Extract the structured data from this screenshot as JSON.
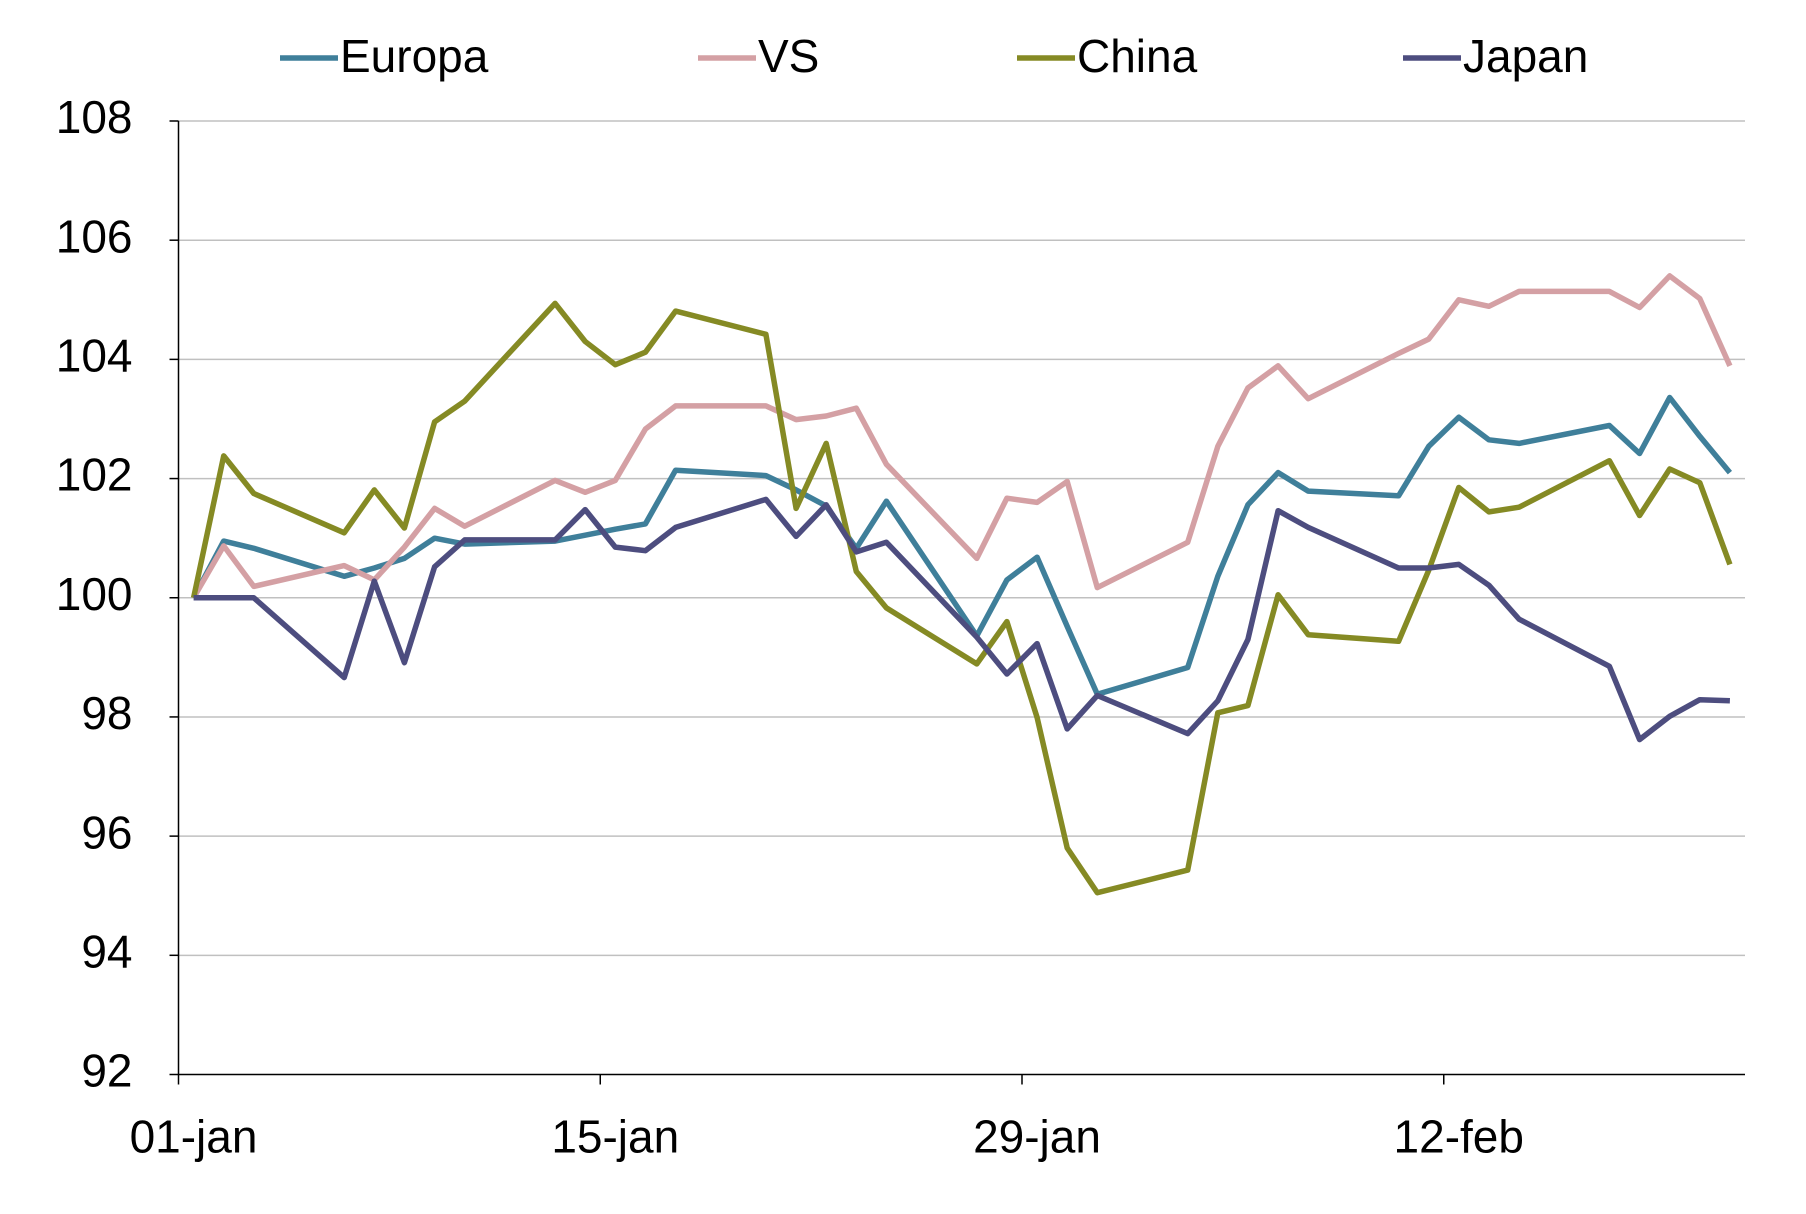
{
  "chart_data": {
    "type": "line",
    "x": [
      "01-jan",
      "02-jan",
      "03-jan",
      "06-jan",
      "07-jan",
      "08-jan",
      "09-jan",
      "10-jan",
      "13-jan",
      "14-jan",
      "15-jan",
      "16-jan",
      "17-jan",
      "20-jan",
      "21-jan",
      "22-jan",
      "23-jan",
      "24-jan",
      "27-jan",
      "28-jan",
      "29-jan",
      "30-jan",
      "31-jan",
      "03-feb",
      "04-feb",
      "05-feb",
      "06-feb",
      "07-feb",
      "10-feb",
      "11-feb",
      "12-feb",
      "13-feb",
      "14-feb",
      "17-feb",
      "18-feb",
      "19-feb",
      "20-feb",
      "21-feb"
    ],
    "series": [
      {
        "name": "Europa",
        "color": "#3f7f9a",
        "values": [
          100.0,
          100.95,
          100.83,
          100.36,
          100.5,
          100.66,
          101.0,
          100.9,
          100.95,
          101.05,
          101.15,
          101.24,
          102.14,
          102.05,
          101.81,
          101.54,
          100.83,
          101.62,
          99.36,
          100.3,
          100.68,
          99.52,
          98.38,
          98.83,
          100.36,
          101.56,
          102.1,
          101.79,
          101.71,
          102.54,
          103.03,
          102.65,
          102.59,
          102.89,
          102.42,
          103.36,
          102.71,
          102.1
        ]
      },
      {
        "name": "VS",
        "color": "#d4a0a4",
        "values": [
          100.0,
          100.87,
          100.19,
          100.54,
          100.3,
          100.85,
          101.5,
          101.2,
          101.97,
          101.77,
          101.97,
          102.83,
          103.22,
          103.22,
          102.99,
          103.05,
          103.18,
          102.24,
          100.66,
          101.67,
          101.6,
          101.95,
          100.17,
          100.93,
          102.54,
          103.52,
          103.89,
          103.34,
          104.1,
          104.34,
          105.0,
          104.89,
          105.14,
          105.14,
          104.87,
          105.4,
          105.02,
          103.89
        ]
      },
      {
        "name": "China",
        "color": "#858a24",
        "values": [
          100.0,
          102.38,
          101.75,
          101.09,
          101.81,
          101.17,
          102.95,
          103.3,
          104.94,
          104.3,
          103.91,
          104.12,
          104.81,
          104.42,
          101.5,
          102.59,
          100.44,
          99.83,
          98.89,
          99.6,
          97.99,
          95.8,
          95.05,
          95.43,
          98.07,
          98.19,
          100.05,
          99.38,
          99.27,
          100.46,
          101.85,
          101.44,
          101.52,
          102.3,
          101.38,
          102.16,
          101.93,
          100.56
        ]
      },
      {
        "name": "Japan",
        "color": "#4d4d7f",
        "values": [
          100.0,
          100.0,
          100.0,
          98.66,
          100.28,
          98.91,
          100.52,
          100.97,
          100.97,
          101.48,
          100.85,
          100.79,
          101.18,
          101.65,
          101.03,
          101.56,
          100.77,
          100.93,
          99.34,
          98.72,
          99.23,
          97.8,
          98.36,
          97.72,
          98.27,
          99.3,
          101.46,
          101.18,
          100.5,
          100.5,
          100.56,
          100.21,
          99.64,
          98.85,
          97.62,
          98.01,
          98.29,
          98.27
        ]
      }
    ],
    "xlim": [
      "01-jan",
      "22-feb"
    ],
    "xticks": [
      "01-jan",
      "15-jan",
      "29-jan",
      "12-feb"
    ],
    "ylim": [
      92,
      108
    ],
    "yticks": [
      92,
      94,
      96,
      98,
      100,
      102,
      104,
      106,
      108
    ],
    "grid": true,
    "legend": "top"
  }
}
